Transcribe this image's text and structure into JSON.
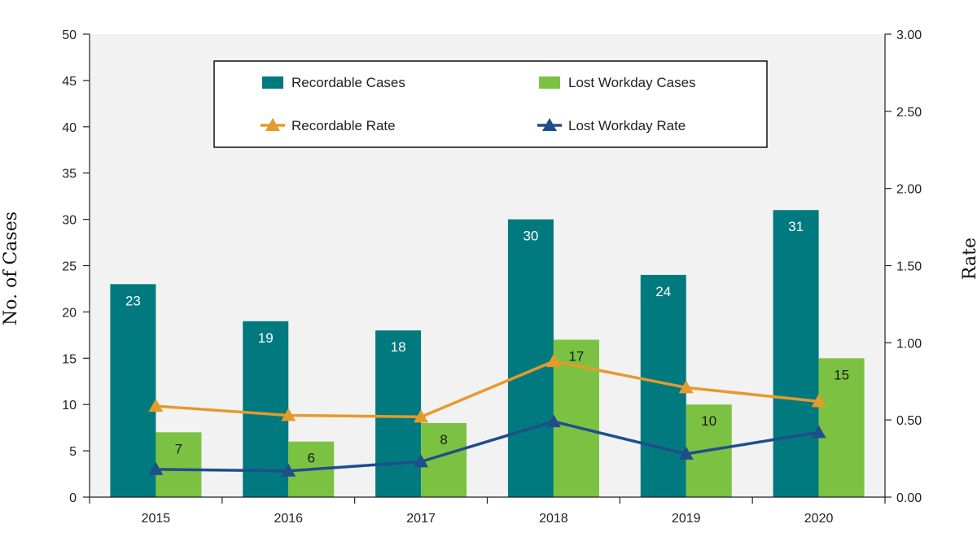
{
  "chart_data": {
    "type": "bar",
    "categories": [
      "2015",
      "2016",
      "2017",
      "2018",
      "2019",
      "2020"
    ],
    "series": [
      {
        "name": "Recordable Cases",
        "type": "bar",
        "axis": "left",
        "color": "#007a7f",
        "label_color": "#ffffff",
        "values": [
          23,
          19,
          18,
          30,
          24,
          31
        ]
      },
      {
        "name": "Lost Workday Cases",
        "type": "bar",
        "axis": "left",
        "color": "#7cc242",
        "label_color": "#1a1a1a",
        "values": [
          7,
          6,
          8,
          17,
          10,
          15
        ]
      },
      {
        "name": "Recordable Rate",
        "type": "line",
        "axis": "right",
        "color": "#e59a2c",
        "values": [
          0.59,
          0.53,
          0.52,
          0.88,
          0.71,
          0.62
        ]
      },
      {
        "name": "Lost Workday Rate",
        "type": "line",
        "axis": "right",
        "color": "#1f4e8c",
        "values": [
          0.18,
          0.17,
          0.23,
          0.49,
          0.28,
          0.42
        ]
      }
    ],
    "ylabel": "No. of Cases",
    "ylabel_right": "Rate",
    "ylim": [
      0,
      50
    ],
    "yticks": [
      "0",
      "5",
      "10",
      "15",
      "20",
      "25",
      "30",
      "35",
      "40",
      "45",
      "50"
    ],
    "ylim_right": [
      0,
      3
    ],
    "yticks_right": [
      "0.00",
      "0.50",
      "1.00",
      "1.50",
      "2.00",
      "2.50",
      "3.00"
    ],
    "grid": false,
    "legend_position": "top-center",
    "plot_background": "#f2f2f2"
  }
}
